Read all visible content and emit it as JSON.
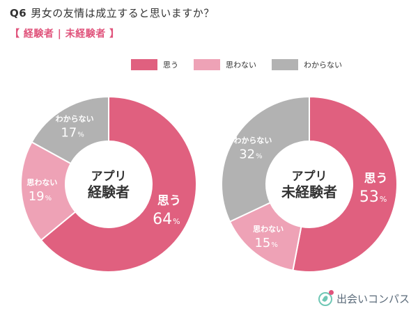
{
  "header": {
    "qnum": "Q6",
    "question": "男女の友情は成立すると思いますか？",
    "subtitle": "【 経験者 | 未経験者 】"
  },
  "colors": {
    "accent": "#e0547c",
    "series": [
      "#e0607f",
      "#eea2b6",
      "#b2b2b2"
    ]
  },
  "chart_data": [
    {
      "type": "pie",
      "center_label": [
        "アプリ",
        "経験者"
      ],
      "slices": [
        {
          "label": "思う",
          "value": 64,
          "unit": "%"
        },
        {
          "label": "思わない",
          "value": 19,
          "unit": "%"
        },
        {
          "label": "わからない",
          "value": 17,
          "unit": "%"
        }
      ],
      "legend": [
        "思う",
        "思わない",
        "わからない"
      ],
      "legend_position": "top"
    },
    {
      "type": "pie",
      "center_label": [
        "アプリ",
        "未経験者"
      ],
      "slices": [
        {
          "label": "思う",
          "value": 53,
          "unit": "%"
        },
        {
          "label": "思わない",
          "value": 15,
          "unit": "%"
        },
        {
          "label": "わからない",
          "value": 32,
          "unit": "%"
        }
      ],
      "legend": [
        "思う",
        "思わない",
        "わからない"
      ],
      "legend_position": "top"
    }
  ],
  "logo": {
    "text": "出会いコンパス",
    "icon": "compass-heart-logo-icon"
  }
}
